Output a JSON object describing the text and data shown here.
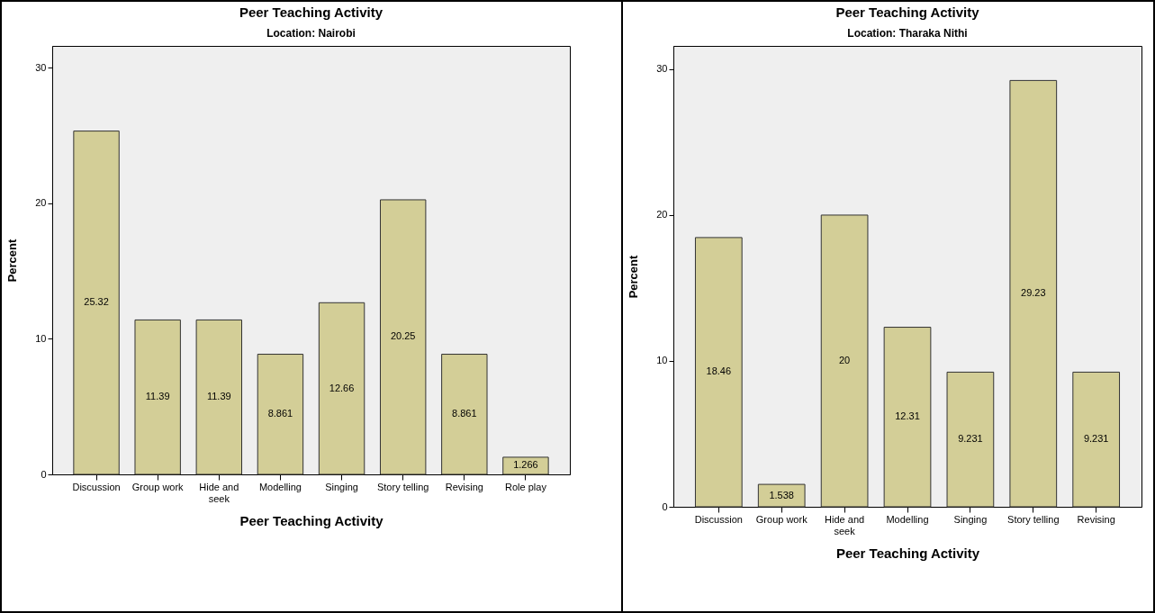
{
  "chart_data": [
    {
      "type": "bar",
      "title": "Peer Teaching Activity",
      "subtitle": "Location: Nairobi",
      "xlabel": "Peer Teaching Activity",
      "ylabel": "Percent",
      "categories": [
        "Discussion",
        "Group work",
        "Hide and seek",
        "Modelling",
        "Singing",
        "Story telling",
        "Revising",
        "Role play"
      ],
      "values": [
        25.32,
        11.39,
        11.39,
        8.861,
        12.66,
        20.25,
        8.861,
        1.266
      ],
      "color": "#d3ce97",
      "ylim": [
        0,
        31.6
      ],
      "yticks": [
        0,
        10,
        20,
        30
      ],
      "data_labels": true,
      "grid": false
    },
    {
      "type": "bar",
      "title": "Peer Teaching Activity",
      "subtitle": "Location: Tharaka Nithi",
      "xlabel": "Peer Teaching Activity",
      "ylabel": "Percent",
      "categories": [
        "Discussion",
        "Group work",
        "Hide and seek",
        "Modelling",
        "Singing",
        "Story telling",
        "Revising"
      ],
      "values": [
        18.46,
        1.538,
        20,
        12.31,
        9.231,
        29.23,
        9.231
      ],
      "color": "#d3ce97",
      "ylim": [
        0,
        31.6
      ],
      "yticks": [
        0,
        10,
        20,
        30
      ],
      "data_labels": true,
      "grid": false
    }
  ]
}
